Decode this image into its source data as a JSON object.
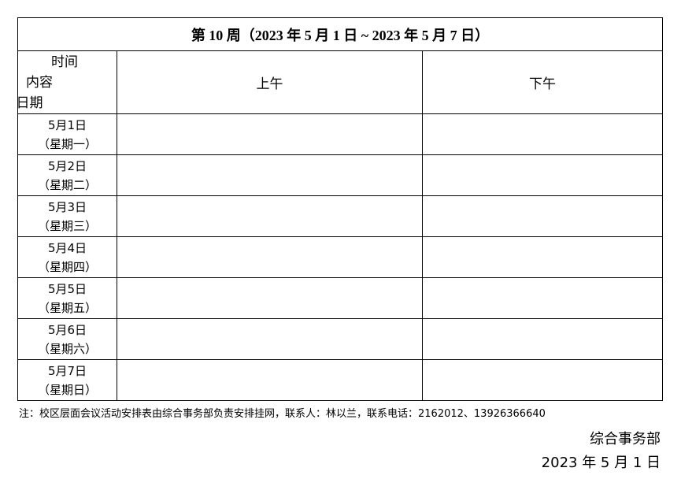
{
  "title": "第 10 周（2023 年 5 月 1 日 ~ 2023 年 5 月 7 日）",
  "header": {
    "corner": [
      "时间",
      "内容",
      "日期"
    ],
    "morning": "上午",
    "afternoon": "下午"
  },
  "rows": [
    {
      "date": "5月1日",
      "weekday": "（星期一）",
      "morning": "",
      "afternoon": ""
    },
    {
      "date": "5月2日",
      "weekday": "（星期二）",
      "morning": "",
      "afternoon": ""
    },
    {
      "date": "5月3日",
      "weekday": "（星期三）",
      "morning": "",
      "afternoon": ""
    },
    {
      "date": "5月4日",
      "weekday": "（星期四）",
      "morning": "",
      "afternoon": ""
    },
    {
      "date": "5月5日",
      "weekday": "（星期五）",
      "morning": "",
      "afternoon": ""
    },
    {
      "date": "5月6日",
      "weekday": "（星期六）",
      "morning": "",
      "afternoon": ""
    },
    {
      "date": "5月7日",
      "weekday": "（星期日）",
      "morning": "",
      "afternoon": ""
    }
  ],
  "note": "注：校区层面会议活动安排表由综合事务部负责安排挂网，联系人：林以兰，联系电话：2162012、13926366640",
  "signature": {
    "department": "综合事务部",
    "date": "2023 年 5 月 1 日"
  }
}
